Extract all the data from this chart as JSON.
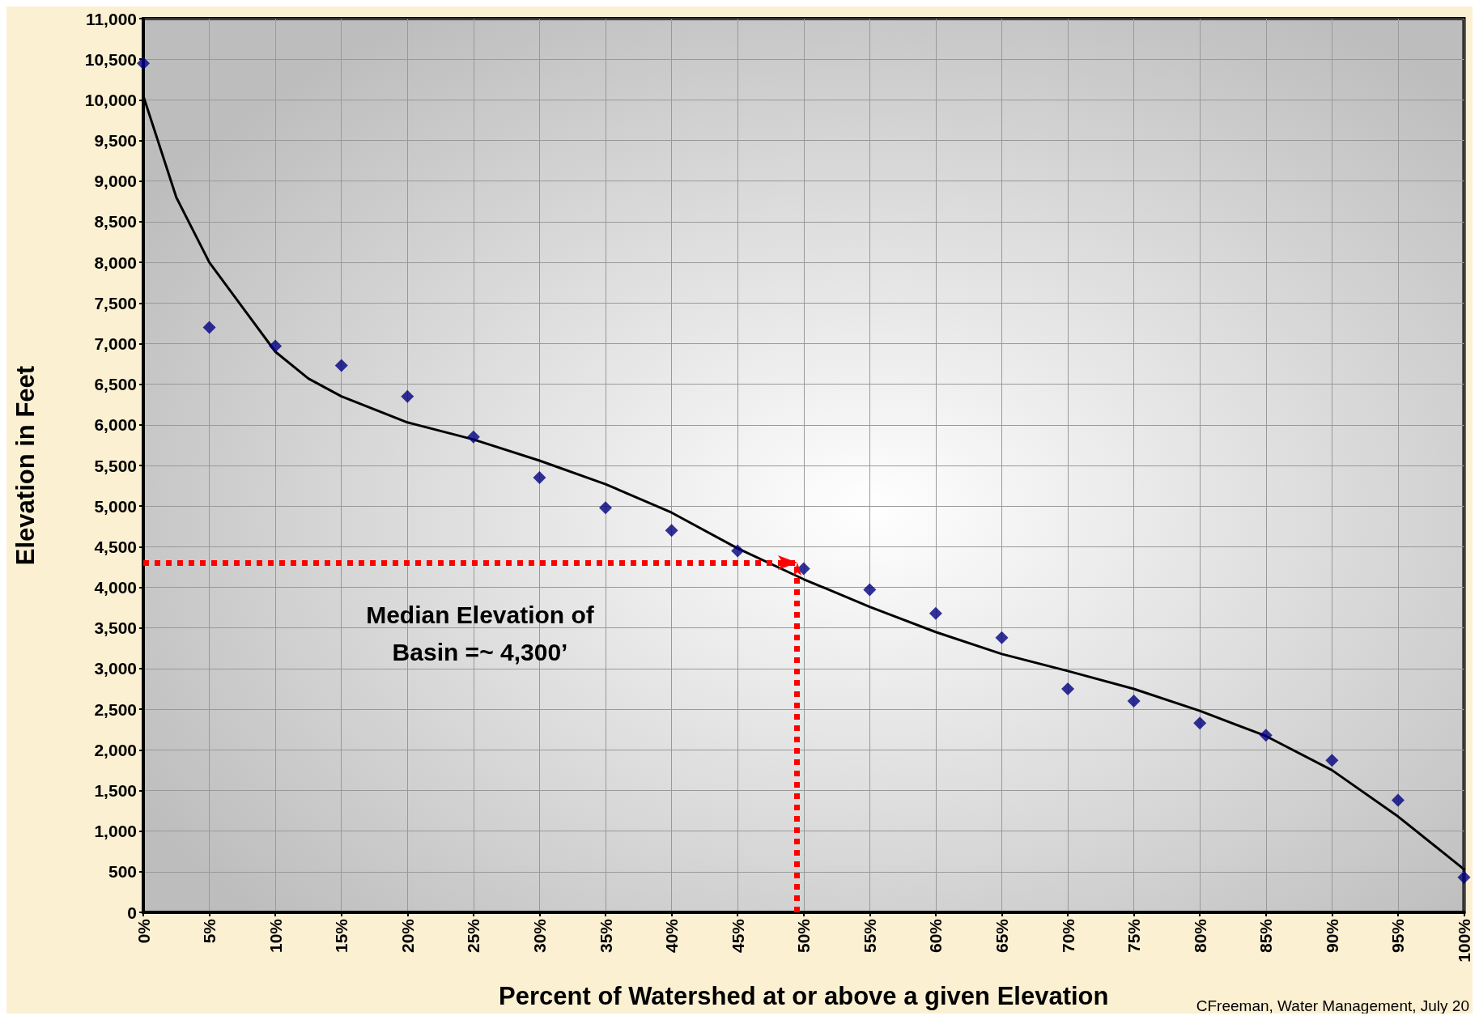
{
  "chart_data": {
    "type": "scatter",
    "xlabel": "Percent of Watershed at or above a given Elevation",
    "ylabel": "Elevation in Feet",
    "xlim": [
      0,
      100
    ],
    "xticks": [
      {
        "value": 0,
        "label": "0%"
      },
      {
        "value": 5,
        "label": "5%"
      },
      {
        "value": 10,
        "label": "10%"
      },
      {
        "value": 15,
        "label": "15%"
      },
      {
        "value": 20,
        "label": "20%"
      },
      {
        "value": 25,
        "label": "25%"
      },
      {
        "value": 30,
        "label": "30%"
      },
      {
        "value": 35,
        "label": "35%"
      },
      {
        "value": 40,
        "label": "40%"
      },
      {
        "value": 45,
        "label": "45%"
      },
      {
        "value": 50,
        "label": "50%"
      },
      {
        "value": 55,
        "label": "55%"
      },
      {
        "value": 60,
        "label": "60%"
      },
      {
        "value": 65,
        "label": "65%"
      },
      {
        "value": 70,
        "label": "70%"
      },
      {
        "value": 75,
        "label": "75%"
      },
      {
        "value": 80,
        "label": "80%"
      },
      {
        "value": 85,
        "label": "85%"
      },
      {
        "value": 90,
        "label": "90%"
      },
      {
        "value": 95,
        "label": "95%"
      },
      {
        "value": 100,
        "label": "100%"
      }
    ],
    "ylim": [
      0,
      11000
    ],
    "yticks": [
      0,
      500,
      {
        "value": 1000,
        "label": "1,000"
      },
      {
        "value": 1500,
        "label": "1,500"
      },
      {
        "value": 2000,
        "label": "2,000"
      },
      {
        "value": 2500,
        "label": "2,500"
      },
      {
        "value": 3000,
        "label": "3,000"
      },
      {
        "value": 3500,
        "label": "3,500"
      },
      {
        "value": 4000,
        "label": "4,000"
      },
      {
        "value": 4500,
        "label": "4,500"
      },
      {
        "value": 5000,
        "label": "5,000"
      },
      {
        "value": 5500,
        "label": "5,500"
      },
      {
        "value": 6000,
        "label": "6,000"
      },
      {
        "value": 6500,
        "label": "6,500"
      },
      {
        "value": 7000,
        "label": "7,000"
      },
      {
        "value": 7500,
        "label": "7,500"
      },
      {
        "value": 8000,
        "label": "8,000"
      },
      {
        "value": 8500,
        "label": "8,500"
      },
      {
        "value": 9000,
        "label": "9,000"
      },
      {
        "value": 9500,
        "label": "9,500"
      },
      {
        "value": 10000,
        "label": "10,000"
      },
      {
        "value": 10500,
        "label": "10,500"
      },
      {
        "value": 11000,
        "label": "11,000"
      }
    ],
    "grid": true,
    "series": [
      {
        "marker": "diamond",
        "color": "#000080",
        "x": [
          0,
          5,
          10,
          15,
          20,
          25,
          30,
          35,
          40,
          45,
          50,
          55,
          60,
          65,
          70,
          75,
          80,
          85,
          90,
          95,
          100
        ],
        "values": [
          10450,
          7200,
          6970,
          6730,
          6350,
          5850,
          5350,
          4980,
          4700,
          4450,
          4230,
          3970,
          3680,
          3380,
          2750,
          2600,
          2330,
          2180,
          1870,
          1380,
          430
        ]
      },
      {
        "type": "line",
        "marker": "none",
        "line_style": "solid",
        "color": "#000000",
        "x": [
          0,
          2.5,
          5,
          7.5,
          10,
          12.5,
          15,
          20,
          25,
          30,
          35,
          40,
          45,
          50,
          55,
          60,
          65,
          70,
          75,
          80,
          85,
          90,
          95,
          100
        ],
        "values": [
          10050,
          8800,
          8000,
          7450,
          6900,
          6570,
          6350,
          6030,
          5820,
          5560,
          5270,
          4920,
          4480,
          4100,
          3760,
          3450,
          3180,
          2970,
          2750,
          2480,
          2170,
          1750,
          1180,
          530
        ]
      }
    ],
    "ref_lines": [
      {
        "axis": "y",
        "value": 4300,
        "color": "#ff0000",
        "line_style": "dotted"
      },
      {
        "axis": "x",
        "value": 49.5,
        "color": "#ff0000",
        "line_style": "dotted"
      }
    ],
    "annotations": [
      "Median Elevation of\nBasin =~ 4,300’",
      "CFreeman, Water Management, July 20"
    ]
  }
}
